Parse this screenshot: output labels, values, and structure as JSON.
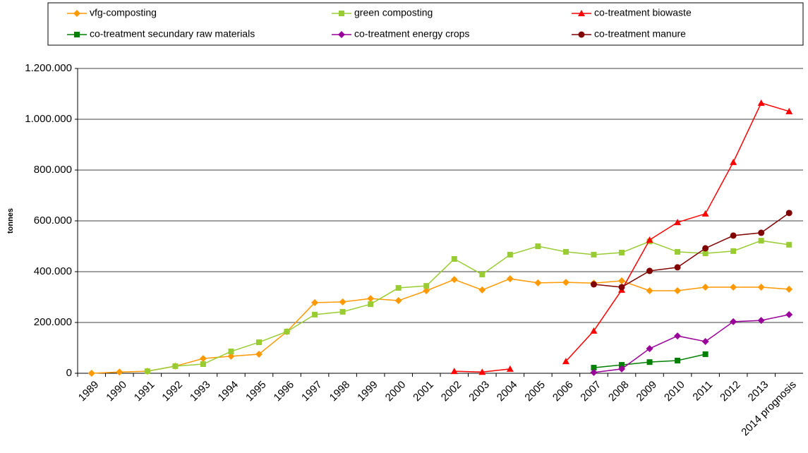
{
  "chart_data": {
    "type": "line",
    "y_label": "tonnes",
    "categories": [
      "1989",
      "1990",
      "1991",
      "1992",
      "1993",
      "1994",
      "1995",
      "1996",
      "1997",
      "1998",
      "1999",
      "2000",
      "2001",
      "2002",
      "2003",
      "2004",
      "2005",
      "2006",
      "2007",
      "2008",
      "2009",
      "2010",
      "2011",
      "2012",
      "2013",
      "2014 prognosis"
    ],
    "ylim": [
      0,
      1200000
    ],
    "yticks": [
      0,
      {
        "value": 200000,
        "label": "200.000"
      },
      {
        "value": 400000,
        "label": "400.000"
      },
      {
        "value": 600000,
        "label": "600.000"
      },
      {
        "value": 800000,
        "label": "800.000"
      },
      {
        "value": 1000000,
        "label": "1.000.000"
      },
      {
        "value": 1200000,
        "label": "1.200.000"
      }
    ],
    "grid": true,
    "legend": "top",
    "series": [
      {
        "name": "vfg-composting",
        "color": "#FF9900",
        "marker": "diamond",
        "values": [
          0,
          5000,
          8000,
          28000,
          58000,
          67000,
          75000,
          164000,
          278000,
          281000,
          294000,
          286000,
          325000,
          369000,
          328000,
          372000,
          356000,
          358000,
          355000,
          364000,
          325000,
          325000,
          339000,
          339000,
          339000,
          331000
        ]
      },
      {
        "name": "green composting",
        "color": "#99CC33",
        "marker": "square",
        "values": [
          null,
          null,
          8000,
          28000,
          36000,
          86000,
          122000,
          164000,
          231000,
          242000,
          272000,
          336000,
          344000,
          450000,
          389000,
          467000,
          500000,
          478000,
          467000,
          475000,
          519000,
          478000,
          472000,
          481000,
          522000,
          506000
        ]
      },
      {
        "name": "co-treatment biowaste",
        "color": "#FF0000",
        "marker": "triangle",
        "values": [
          null,
          null,
          null,
          null,
          null,
          null,
          null,
          null,
          null,
          null,
          null,
          null,
          null,
          8000,
          5000,
          17000,
          null,
          47000,
          167000,
          328000,
          525000,
          594000,
          628000,
          831000,
          1064000,
          1031000
        ]
      },
      {
        "name": "co-treatment secundary raw materials",
        "color": "#008000",
        "marker": "square",
        "values": [
          null,
          null,
          null,
          null,
          null,
          null,
          null,
          null,
          null,
          null,
          null,
          null,
          null,
          null,
          null,
          null,
          null,
          null,
          22000,
          33000,
          44000,
          50000,
          75000,
          null,
          null,
          null
        ]
      },
      {
        "name": "co-treatment energy crops",
        "color": "#990099",
        "marker": "diamond",
        "values": [
          null,
          null,
          null,
          null,
          null,
          null,
          null,
          null,
          null,
          null,
          null,
          null,
          null,
          null,
          null,
          null,
          null,
          null,
          3000,
          17000,
          97000,
          147000,
          125000,
          203000,
          208000,
          231000
        ]
      },
      {
        "name": "co-treatment manure",
        "color": "#800000",
        "marker": "circle",
        "values": [
          null,
          null,
          null,
          null,
          null,
          null,
          null,
          null,
          null,
          null,
          null,
          null,
          null,
          null,
          null,
          null,
          null,
          null,
          350000,
          339000,
          403000,
          417000,
          492000,
          542000,
          553000,
          631000
        ]
      }
    ]
  }
}
